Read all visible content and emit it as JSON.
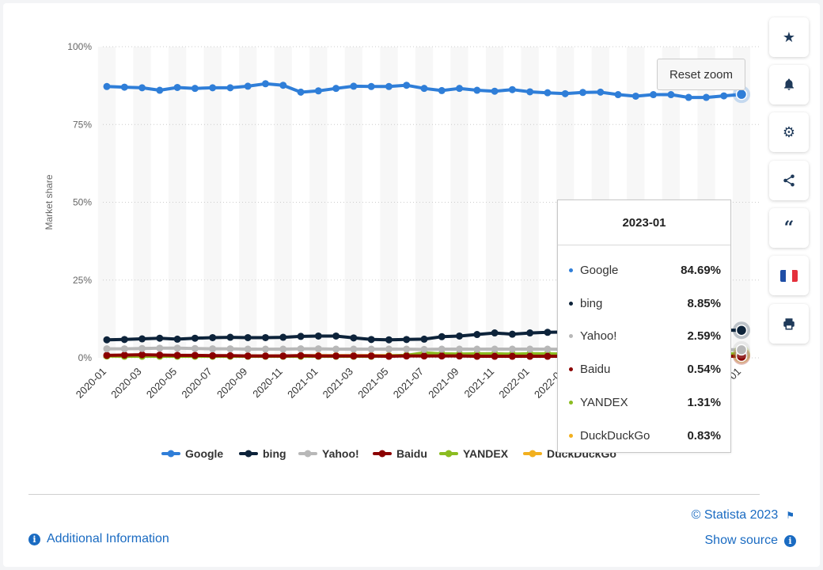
{
  "chart_data": {
    "type": "line",
    "ylabel": "Market share",
    "y_ticks": [
      "100%",
      "75%",
      "50%",
      "25%",
      "0%"
    ],
    "y_tick_values": [
      100,
      75,
      50,
      25,
      0
    ],
    "ylim": [
      0,
      100
    ],
    "x_tick_labels": [
      "2020-01",
      "2020-03",
      "2020-05",
      "2020-07",
      "2020-09",
      "2020-11",
      "2021-01",
      "2021-03",
      "2021-05",
      "2021-07",
      "2021-09",
      "2021-11",
      "2022-01",
      "2022-03",
      "2022-05",
      "2022-07",
      "2022-09",
      "2022-11",
      "2023-01"
    ],
    "x": [
      "2020-01",
      "2020-02",
      "2020-03",
      "2020-04",
      "2020-05",
      "2020-06",
      "2020-07",
      "2020-08",
      "2020-09",
      "2020-10",
      "2020-11",
      "2020-12",
      "2021-01",
      "2021-02",
      "2021-03",
      "2021-04",
      "2021-05",
      "2021-06",
      "2021-07",
      "2021-08",
      "2021-09",
      "2021-10",
      "2021-11",
      "2021-12",
      "2022-01",
      "2022-02",
      "2022-03",
      "2022-04",
      "2022-05",
      "2022-06",
      "2022-07",
      "2022-08",
      "2022-09",
      "2022-10",
      "2022-11",
      "2022-12",
      "2023-01"
    ],
    "grid": true,
    "legend_position": "bottom",
    "series": [
      {
        "name": "Google",
        "color": "#2f7ed8",
        "values": [
          87.2,
          87.0,
          86.8,
          86.0,
          86.9,
          86.6,
          86.8,
          86.8,
          87.3,
          88.1,
          87.6,
          85.4,
          85.8,
          86.6,
          87.3,
          87.2,
          87.2,
          87.6,
          86.6,
          85.9,
          86.6,
          86.0,
          85.7,
          86.2,
          85.5,
          85.2,
          84.9,
          85.3,
          85.4,
          84.6,
          84.1,
          84.6,
          84.6,
          83.7,
          83.7,
          84.2,
          84.69
        ]
      },
      {
        "name": "bing",
        "color": "#0d233a",
        "values": [
          5.8,
          5.9,
          6.1,
          6.3,
          6.0,
          6.3,
          6.5,
          6.6,
          6.5,
          6.5,
          6.6,
          6.9,
          7.0,
          7.0,
          6.4,
          5.9,
          5.8,
          5.9,
          6.0,
          6.8,
          7.0,
          7.5,
          8.0,
          7.6,
          8.0,
          8.2,
          8.3,
          8.4,
          8.5,
          8.6,
          8.7,
          8.9,
          9.0,
          9.1,
          9.0,
          8.9,
          8.85
        ]
      },
      {
        "name": "Yahoo!",
        "color": "#b8b8b8",
        "values": [
          2.9,
          2.9,
          3.0,
          3.1,
          3.1,
          3.0,
          2.9,
          2.9,
          2.8,
          2.8,
          2.8,
          2.9,
          2.9,
          2.8,
          2.8,
          2.8,
          2.8,
          2.8,
          2.7,
          2.8,
          2.8,
          2.8,
          2.8,
          2.8,
          2.8,
          2.8,
          2.7,
          2.7,
          2.7,
          2.7,
          2.7,
          2.6,
          2.6,
          2.6,
          2.6,
          2.6,
          2.59
        ]
      },
      {
        "name": "Baidu",
        "color": "#8b0000",
        "values": [
          0.8,
          0.9,
          1.0,
          0.9,
          0.8,
          0.8,
          0.7,
          0.7,
          0.6,
          0.6,
          0.6,
          0.7,
          0.6,
          0.6,
          0.6,
          0.6,
          0.5,
          0.6,
          0.6,
          0.6,
          0.6,
          0.5,
          0.5,
          0.5,
          0.5,
          0.5,
          0.5,
          0.5,
          0.5,
          0.5,
          0.5,
          0.5,
          0.5,
          0.5,
          0.5,
          0.5,
          0.54
        ]
      },
      {
        "name": "YANDEX",
        "color": "#8bbc21",
        "values": [
          0.6,
          0.5,
          0.5,
          0.5,
          0.5,
          0.5,
          0.5,
          0.5,
          0.5,
          0.5,
          0.5,
          0.5,
          0.5,
          0.5,
          0.5,
          0.5,
          0.6,
          0.8,
          1.6,
          1.3,
          1.2,
          1.3,
          1.3,
          1.2,
          1.3,
          1.3,
          1.2,
          1.3,
          1.3,
          1.3,
          1.3,
          1.3,
          1.3,
          1.3,
          1.3,
          1.3,
          1.31
        ]
      },
      {
        "name": "DuckDuckGo",
        "color": "#f2b01e",
        "values": [
          0.6,
          0.6,
          0.6,
          0.6,
          0.6,
          0.6,
          0.6,
          0.6,
          0.6,
          0.6,
          0.6,
          0.7,
          0.7,
          0.7,
          0.7,
          0.7,
          0.7,
          0.7,
          0.7,
          0.7,
          0.7,
          0.7,
          0.7,
          0.7,
          0.7,
          0.7,
          0.7,
          0.7,
          0.7,
          0.7,
          0.7,
          0.7,
          0.8,
          0.8,
          0.8,
          0.8,
          0.83
        ]
      }
    ],
    "highlight_index": 36
  },
  "tooltip": {
    "title": "2023-01",
    "rows": [
      {
        "name": "Google",
        "value": "84.69%",
        "color": "#2f7ed8"
      },
      {
        "name": "bing",
        "value": "8.85%",
        "color": "#0d233a"
      },
      {
        "name": "Yahoo!",
        "value": "2.59%",
        "color": "#b8b8b8"
      },
      {
        "name": "Baidu",
        "value": "0.54%",
        "color": "#8b0000"
      },
      {
        "name": "YANDEX",
        "value": "1.31%",
        "color": "#8bbc21"
      },
      {
        "name": "DuckDuckGo",
        "value": "0.83%",
        "color": "#f2b01e"
      }
    ]
  },
  "reset_zoom_label": "Reset zoom",
  "footer": {
    "additional_info": "Additional Information",
    "copyright": "© Statista 2023",
    "show_source": "Show source"
  },
  "sidebar_icons": [
    "star-icon",
    "bell-icon",
    "gear-icon",
    "share-icon",
    "quote-icon",
    "flag-france-icon",
    "print-icon"
  ]
}
